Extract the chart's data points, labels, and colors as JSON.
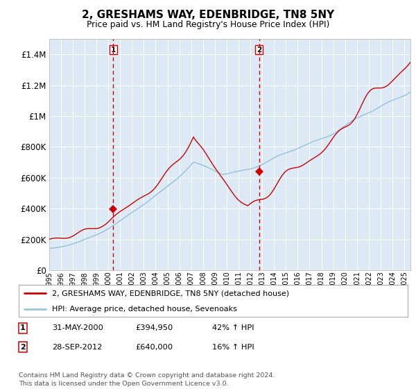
{
  "title": "2, GRESHAMS WAY, EDENBRIDGE, TN8 5NY",
  "subtitle": "Price paid vs. HM Land Registry's House Price Index (HPI)",
  "plot_bg_color": "#ddeaf5",
  "red_color": "#cc0000",
  "blue_color": "#99c4de",
  "dashed_color": "#cc0000",
  "ylim": [
    0,
    1500000
  ],
  "yticks": [
    0,
    200000,
    400000,
    600000,
    800000,
    1000000,
    1200000,
    1400000
  ],
  "ytick_labels": [
    "£0",
    "£200K",
    "£400K",
    "£600K",
    "£800K",
    "£1M",
    "£1.2M",
    "£1.4M"
  ],
  "sale1_year": 2000.41,
  "sale1_price": 394950,
  "sale2_year": 2012.74,
  "sale2_price": 640000,
  "legend_line1": "2, GRESHAMS WAY, EDENBRIDGE, TN8 5NY (detached house)",
  "legend_line2": "HPI: Average price, detached house, Sevenoaks",
  "table_row1": [
    "1",
    "31-MAY-2000",
    "£394,950",
    "42% ↑ HPI"
  ],
  "table_row2": [
    "2",
    "28-SEP-2012",
    "£640,000",
    "16% ↑ HPI"
  ],
  "footer": "Contains HM Land Registry data © Crown copyright and database right 2024.\nThis data is licensed under the Open Government Licence v3.0.",
  "xlim_start": 1995,
  "xlim_end": 2025.5
}
